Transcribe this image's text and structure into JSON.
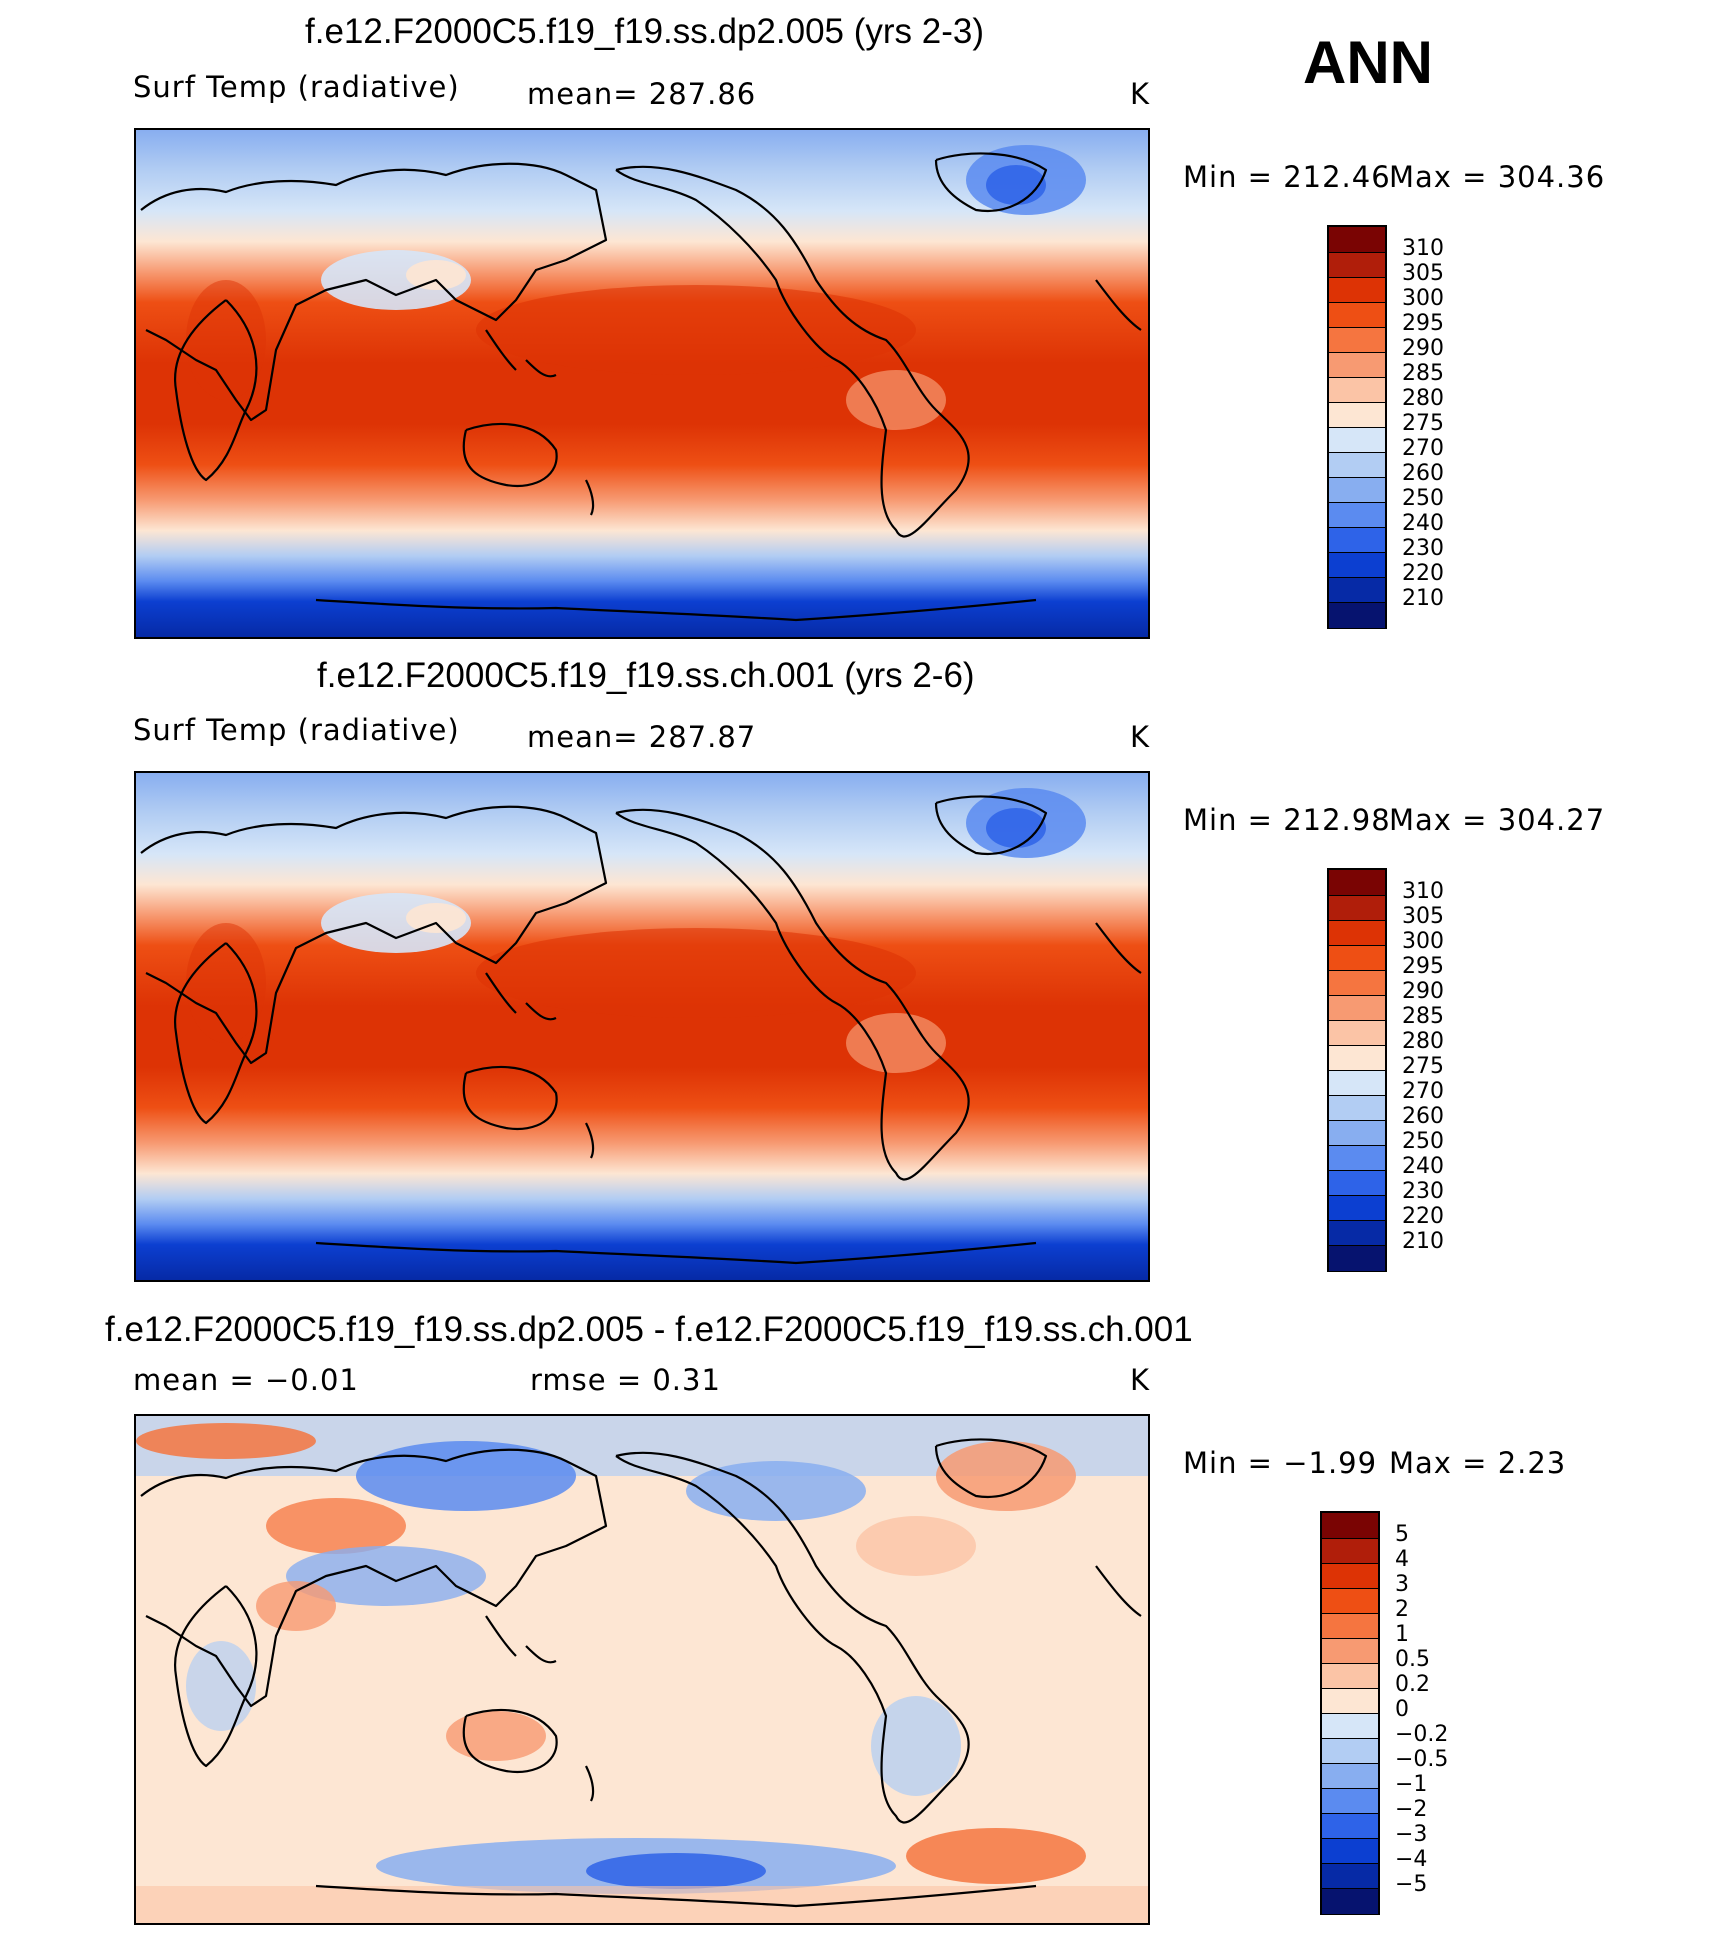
{
  "season": "ANN",
  "chart_data": [
    {
      "type": "heatmap",
      "title": "f.e12.F2000C5.f19_f19.ss.dp2.005 (yrs 2-3)",
      "left_label": "Surf Temp (radiative)",
      "center_label": "mean=  287.86",
      "right_label": "K",
      "min_label": "Min  =  212.46",
      "max_label": "Max  =  304.36",
      "levels": [
        "310",
        "305",
        "300",
        "295",
        "290",
        "285",
        "280",
        "275",
        "270",
        "260",
        "250",
        "240",
        "230",
        "220",
        "210"
      ],
      "colors": [
        "#7a0403",
        "#b01e0a",
        "#dd3305",
        "#ee4f14",
        "#f57540",
        "#f79a72",
        "#fbc4a6",
        "#fde6d3",
        "#d6e6f8",
        "#b2cdf3",
        "#88aef0",
        "#5b8bf0",
        "#2e63e8",
        "#0c3fd1",
        "#062aa6",
        "#06136f"
      ]
    },
    {
      "type": "heatmap",
      "title": "f.e12.F2000C5.f19_f19.ss.ch.001 (yrs 2-6)",
      "left_label": "Surf Temp (radiative)",
      "center_label": "mean=  287.87",
      "right_label": "K",
      "min_label": "Min  =  212.98",
      "max_label": "Max  =  304.27",
      "levels": [
        "310",
        "305",
        "300",
        "295",
        "290",
        "285",
        "280",
        "275",
        "270",
        "260",
        "250",
        "240",
        "230",
        "220",
        "210"
      ],
      "colors": [
        "#7a0403",
        "#b01e0a",
        "#dd3305",
        "#ee4f14",
        "#f57540",
        "#f79a72",
        "#fbc4a6",
        "#fde6d3",
        "#d6e6f8",
        "#b2cdf3",
        "#88aef0",
        "#5b8bf0",
        "#2e63e8",
        "#0c3fd1",
        "#062aa6",
        "#06136f"
      ]
    },
    {
      "type": "heatmap",
      "title": "f.e12.F2000C5.f19_f19.ss.dp2.005 - f.e12.F2000C5.f19_f19.ss.ch.001",
      "left_label": "mean =   −0.01",
      "center_label": "rmse =    0.31",
      "right_label": "K",
      "min_label": "Min  =   −1.99",
      "max_label": "Max  =    2.23",
      "levels": [
        "5",
        "4",
        "3",
        "2",
        "1",
        "0.5",
        "0.2",
        "0",
        "−0.2",
        "−0.5",
        "−1",
        "−2",
        "−3",
        "−4",
        "−5"
      ],
      "colors": [
        "#7a0403",
        "#b01e0a",
        "#dd3305",
        "#ee4f14",
        "#f57540",
        "#f79a72",
        "#fbc4a6",
        "#fde6d3",
        "#d6e6f8",
        "#b2cdf3",
        "#88aef0",
        "#5b8bf0",
        "#2e63e8",
        "#0c3fd1",
        "#062aa6",
        "#06136f"
      ]
    }
  ]
}
